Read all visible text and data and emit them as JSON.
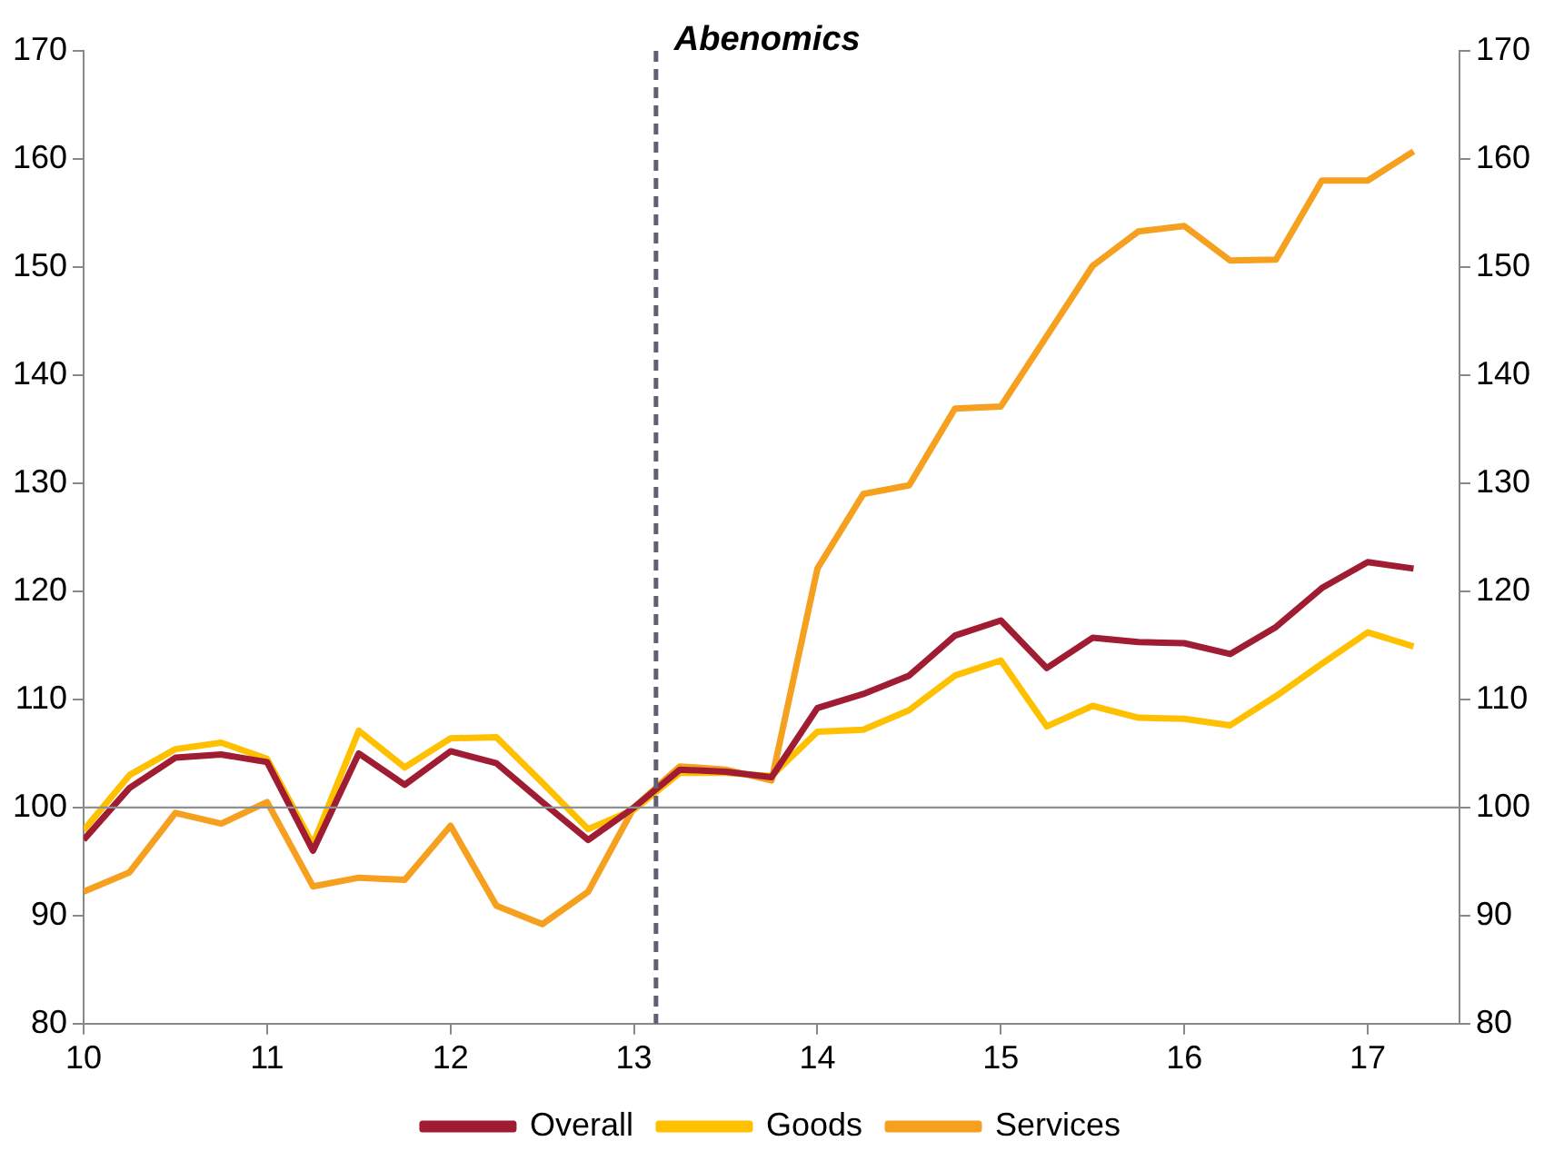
{
  "chart_data": {
    "type": "line",
    "x": [
      10,
      10.25,
      10.5,
      10.75,
      11,
      11.25,
      11.5,
      11.75,
      12,
      12.25,
      12.5,
      12.75,
      13,
      13.25,
      13.5,
      13.75,
      14,
      14.25,
      14.5,
      14.75,
      15,
      15.25,
      15.5,
      15.75,
      16,
      16.25,
      16.5,
      16.75,
      17,
      17.25
    ],
    "series": [
      {
        "name": "Overall",
        "color": "#a01c32",
        "values": [
          97,
          101.8,
          104.6,
          104.9,
          104.2,
          96,
          105,
          102.1,
          105.2,
          104.1,
          100.5,
          97,
          100,
          103.5,
          103.3,
          102.8,
          109.2,
          110.5,
          112.2,
          115.9,
          117.3,
          112.9,
          115.7,
          115.3,
          115.2,
          114.2,
          116.7,
          120.3,
          122.7,
          122.1
        ]
      },
      {
        "name": "Goods",
        "color": "#ffc000",
        "values": [
          97.9,
          103,
          105.4,
          106,
          104.5,
          96.6,
          107.1,
          103.7,
          106.4,
          106.5,
          102.3,
          98,
          99.8,
          103.2,
          103.2,
          102.9,
          107,
          107.2,
          109,
          112.2,
          113.6,
          107.5,
          109.4,
          108.3,
          108.2,
          107.6,
          110.3,
          113.3,
          116.2,
          114.9
        ]
      },
      {
        "name": "Services",
        "color": "#f6a020",
        "values": [
          92.2,
          94,
          99.5,
          98.5,
          100.5,
          92.7,
          93.5,
          93.3,
          98.3,
          90.9,
          89.2,
          92.2,
          100,
          103.8,
          103.5,
          102.5,
          122.1,
          129,
          129.8,
          136.9,
          137.1,
          143.6,
          150.1,
          153.3,
          153.8,
          150.6,
          150.7,
          158,
          158,
          160.7
        ]
      }
    ],
    "xlim": [
      10,
      17.5
    ],
    "xticks": [
      10,
      11,
      12,
      13,
      14,
      15,
      16,
      17
    ],
    "ylim": [
      80,
      170
    ],
    "yticks": [
      80,
      90,
      100,
      110,
      120,
      130,
      140,
      150,
      160,
      170
    ],
    "y2lim": [
      80,
      170
    ],
    "y2ticks": [
      80,
      90,
      100,
      110,
      120,
      130,
      140,
      150,
      160,
      170
    ],
    "ref_lines": [
      {
        "axis": "x",
        "value": 13.12,
        "label": "Abenomics",
        "color": "#606070",
        "line_style": "dashed"
      },
      {
        "axis": "y",
        "value": 100,
        "label": null,
        "color": "#909090",
        "line_style": "solid"
      }
    ],
    "legend": "bottom",
    "grid": false,
    "marker": "none",
    "line_style": "solid"
  }
}
